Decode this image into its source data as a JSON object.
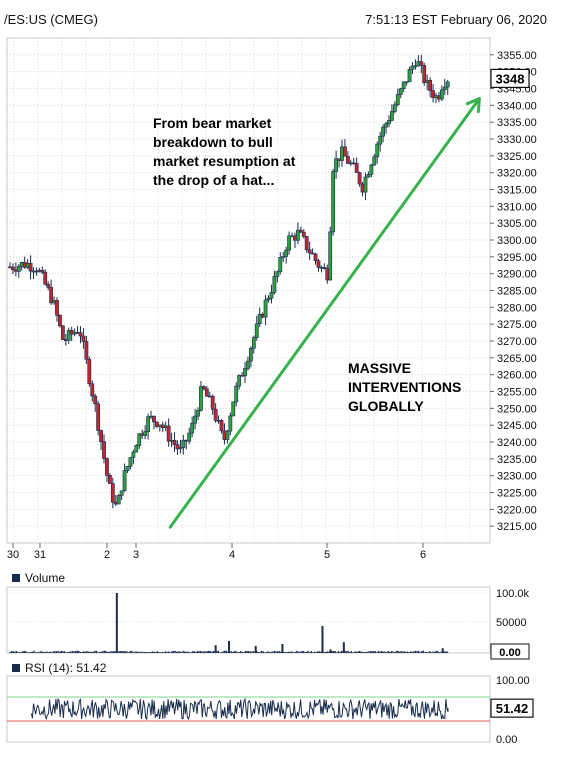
{
  "header": {
    "symbol": "/ES:US (CMEG)",
    "timestamp": "7:51:13 EST February 06, 2020"
  },
  "annotations": {
    "note_top": "From bear market\nbreakdown to bull\nmarket resumption at\nthe drop of a hat...",
    "note_mid": "MASSIVE\nINTERVENTIONS\nGLOBALLY"
  },
  "colors": {
    "up_candle": "#2e9e3f",
    "down_candle": "#c0262f",
    "arrow": "#37b24d",
    "series": "#1a2c4e",
    "rsi_upper": "#7fd18a",
    "rsi_lower": "#e06060"
  },
  "chart_data": [
    {
      "type": "candlestick",
      "x_ticks": [
        "30",
        "31",
        "2",
        "3",
        "4",
        "5",
        "6"
      ],
      "ylim": [
        3210,
        3360
      ],
      "y_ticks": [
        3215,
        3220,
        3225,
        3230,
        3235,
        3240,
        3245,
        3250,
        3255,
        3260,
        3265,
        3270,
        3275,
        3280,
        3285,
        3290,
        3295,
        3300,
        3305,
        3310,
        3315,
        3320,
        3325,
        3330,
        3335,
        3340,
        3345,
        3350,
        3355
      ],
      "y_tick_labels": [
        "3215.00",
        "3220.00",
        "3225.00",
        "3230.00",
        "3235.00",
        "3240.00",
        "3245.00",
        "3250.00",
        "3255.00",
        "3260.00",
        "3265.00",
        "3270.00",
        "3275.00",
        "3280.00",
        "3285.00",
        "3290.00",
        "3295.00",
        "3300.00",
        "3305.00",
        "3310.00",
        "3315.00",
        "3320.00",
        "3325.00",
        "3330.00",
        "3335.00",
        "3340.00",
        "3345.00",
        "3350.00",
        "3355.00"
      ],
      "last_price": 3348,
      "last_price_label": "3348",
      "price_path": [
        [
          0,
          3292
        ],
        [
          0.3,
          3293
        ],
        [
          0.5,
          3292
        ],
        [
          0.8,
          3282
        ],
        [
          1.0,
          3270
        ],
        [
          1.3,
          3274
        ],
        [
          1.6,
          3250
        ],
        [
          1.85,
          3227
        ],
        [
          2.0,
          3220
        ],
        [
          2.1,
          3228
        ],
        [
          2.35,
          3240
        ],
        [
          2.6,
          3247
        ],
        [
          2.8,
          3246
        ],
        [
          3.0,
          3241
        ],
        [
          3.2,
          3237
        ],
        [
          3.4,
          3244
        ],
        [
          3.6,
          3256
        ],
        [
          3.8,
          3250
        ],
        [
          4.0,
          3240
        ],
        [
          4.2,
          3254
        ],
        [
          4.5,
          3268
        ],
        [
          4.8,
          3282
        ],
        [
          5.0,
          3290
        ],
        [
          5.2,
          3300
        ],
        [
          5.4,
          3302
        ],
        [
          5.6,
          3297
        ],
        [
          5.8,
          3292
        ],
        [
          5.95,
          3290
        ],
        [
          6.05,
          3322
        ],
        [
          6.2,
          3326
        ],
        [
          6.4,
          3322
        ],
        [
          6.6,
          3316
        ],
        [
          6.9,
          3330
        ],
        [
          7.2,
          3340
        ],
        [
          7.4,
          3347
        ],
        [
          7.6,
          3354
        ],
        [
          7.8,
          3346
        ],
        [
          8.0,
          3342
        ],
        [
          8.1,
          3347
        ],
        [
          8.2,
          3348
        ]
      ],
      "trend_arrow": {
        "from": [
          2.85,
          3215
        ],
        "to": [
          8.6,
          3342
        ]
      }
    },
    {
      "type": "bar",
      "name": "Volume",
      "ylim": [
        0,
        100000
      ],
      "y_tick_labels": [
        "100.0k",
        "50000",
        "0.00"
      ],
      "spikes": [
        [
          2.0,
          100000
        ],
        [
          3.85,
          13000
        ],
        [
          4.1,
          20000
        ],
        [
          4.6,
          12000
        ],
        [
          5.1,
          15000
        ],
        [
          5.85,
          45000
        ],
        [
          6.0,
          6000
        ],
        [
          6.25,
          18000
        ],
        [
          8.1,
          8000
        ]
      ]
    },
    {
      "type": "line",
      "name": "RSI (14)",
      "label": "RSI (14): 51.42",
      "value": 51.42,
      "value_label": "51.42",
      "ylim": [
        0,
        100
      ],
      "y_tick_labels": [
        "100.00",
        "0.00"
      ],
      "bands": [
        70,
        30
      ]
    }
  ]
}
